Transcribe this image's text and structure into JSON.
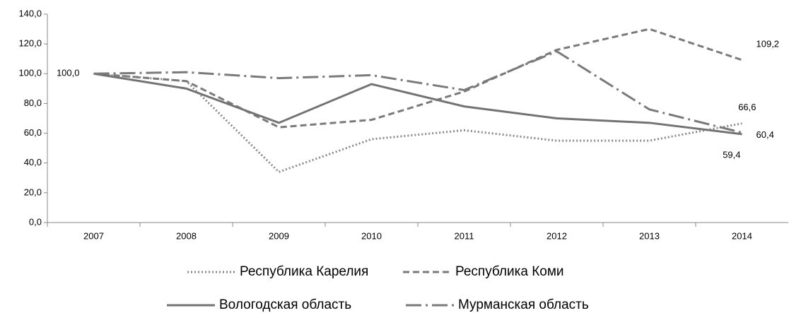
{
  "chart_data": {
    "type": "line",
    "categories": [
      "2007",
      "2008",
      "2009",
      "2010",
      "2011",
      "2012",
      "2013",
      "2014"
    ],
    "series": [
      {
        "name": "Республика Карелия",
        "color": "#8a8a8a",
        "dash": "2 3",
        "values": [
          100,
          95,
          34,
          56,
          62,
          55,
          55,
          66.6
        ],
        "value_labels": [
          "100,0",
          null,
          null,
          null,
          null,
          null,
          null,
          "66,6"
        ]
      },
      {
        "name": "Республика Коми",
        "color": "#7a7a7a",
        "dash": "9 5",
        "values": [
          100,
          95,
          64,
          69,
          88,
          116,
          130,
          109.2
        ],
        "value_labels": [
          null,
          null,
          null,
          null,
          null,
          null,
          null,
          "109,2"
        ]
      },
      {
        "name": "Вологодская область",
        "color": "#737373",
        "dash": "",
        "values": [
          100,
          90,
          67,
          93,
          78,
          70,
          67,
          59.4
        ],
        "value_labels": [
          null,
          null,
          null,
          null,
          null,
          null,
          null,
          "59,4"
        ]
      },
      {
        "name": "Мурманская область",
        "color": "#7a7a7a",
        "dash": "22 6 3 6",
        "values": [
          100,
          101,
          97,
          99,
          89,
          115,
          76,
          60.4
        ],
        "value_labels": [
          null,
          null,
          null,
          null,
          null,
          null,
          null,
          "60,4"
        ]
      }
    ],
    "ylim": [
      0,
      140
    ],
    "yticks": [
      {
        "value": 0,
        "label": "0,0"
      },
      {
        "value": 20,
        "label": "20,0"
      },
      {
        "value": 40,
        "label": "40,0"
      },
      {
        "value": 60,
        "label": "60,0"
      },
      {
        "value": 80,
        "label": "80,0"
      },
      {
        "value": 100,
        "label": "100,0"
      },
      {
        "value": 120,
        "label": "120,0"
      },
      {
        "value": 140,
        "label": "140,0"
      }
    ]
  }
}
